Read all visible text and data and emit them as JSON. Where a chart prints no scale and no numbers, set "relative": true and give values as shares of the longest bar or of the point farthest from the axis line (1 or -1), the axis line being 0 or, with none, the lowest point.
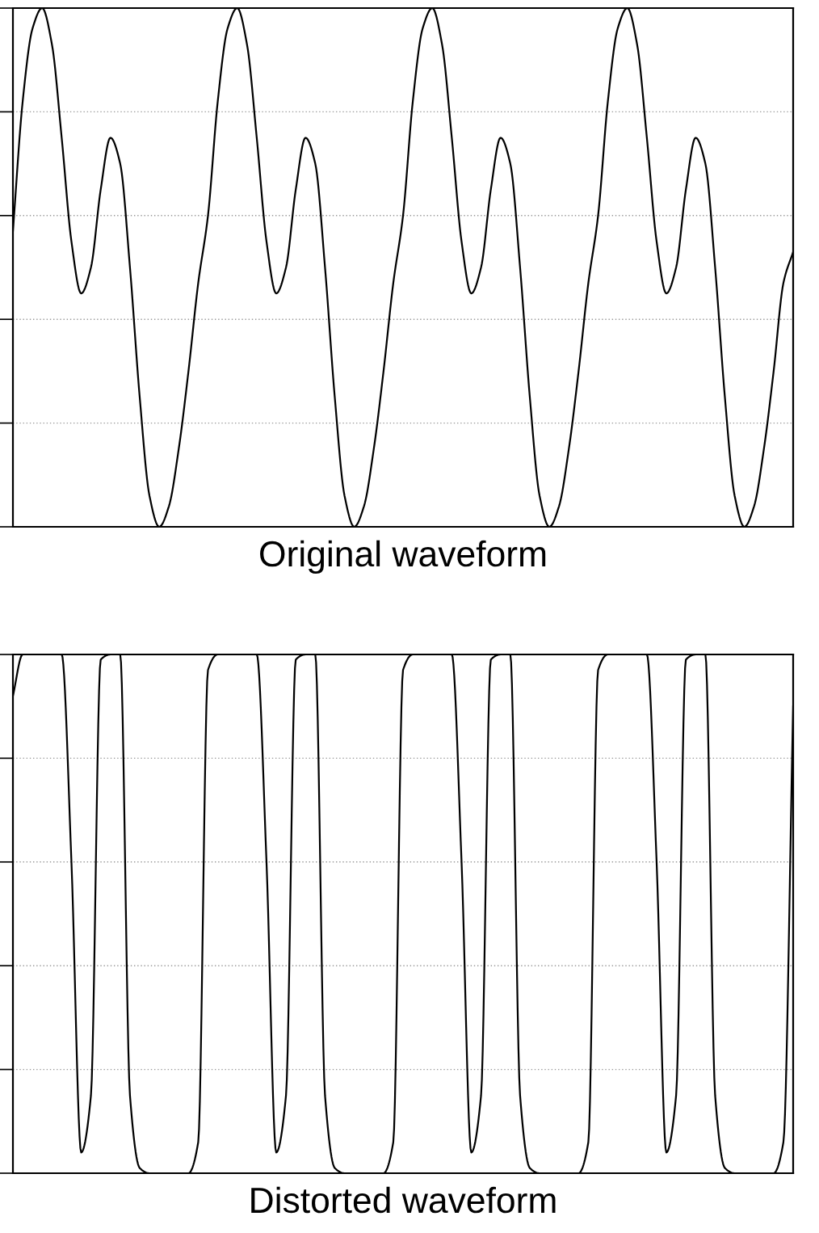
{
  "chart_data": [
    {
      "type": "line",
      "relative": true,
      "xlabel": "Original waveform",
      "color": "#000000",
      "grid": "y",
      "categories": [
        null,
        null,
        null,
        null,
        null,
        null,
        null,
        null,
        null,
        null,
        null,
        null,
        null,
        null,
        null,
        null,
        null,
        null,
        null,
        null,
        null,
        null,
        null,
        null,
        null,
        null,
        null,
        null,
        null,
        null,
        null,
        null,
        null,
        null,
        null,
        null,
        null,
        null,
        null,
        null,
        null,
        null,
        null,
        null,
        null,
        null,
        null,
        null,
        null,
        null,
        null,
        null,
        null,
        null,
        null,
        null,
        null,
        null,
        null,
        null,
        null,
        null,
        null,
        null,
        null,
        null,
        null,
        null,
        null,
        null,
        null,
        null,
        null,
        null,
        null,
        null,
        null,
        null,
        null,
        null,
        null
      ],
      "values": [
        0.57,
        0.82,
        0.96,
        1.0,
        0.93,
        0.75,
        0.55,
        0.45,
        0.5,
        0.65,
        0.75,
        0.7,
        0.5,
        0.25,
        0.06,
        0.0,
        0.04,
        0.15,
        0.3,
        0.47,
        0.6,
        0.82,
        0.96,
        1.0,
        0.93,
        0.75,
        0.55,
        0.45,
        0.5,
        0.65,
        0.75,
        0.7,
        0.5,
        0.25,
        0.06,
        0.0,
        0.04,
        0.15,
        0.3,
        0.47,
        0.6,
        0.82,
        0.96,
        1.0,
        0.93,
        0.75,
        0.55,
        0.45,
        0.5,
        0.65,
        0.75,
        0.7,
        0.5,
        0.25,
        0.06,
        0.0,
        0.04,
        0.15,
        0.3,
        0.47,
        0.6,
        0.82,
        0.96,
        1.0,
        0.93,
        0.75,
        0.55,
        0.45,
        0.5,
        0.65,
        0.75,
        0.7,
        0.5,
        0.25,
        0.06,
        0.0,
        0.04,
        0.15,
        0.3,
        0.47,
        0.53
      ]
    },
    {
      "type": "line",
      "relative": true,
      "xlabel": "Distorted waveform",
      "color": "#000000",
      "grid": "y",
      "categories": [
        null,
        null,
        null,
        null,
        null,
        null,
        null,
        null,
        null,
        null,
        null,
        null,
        null,
        null,
        null,
        null,
        null,
        null,
        null,
        null,
        null,
        null,
        null,
        null,
        null,
        null,
        null,
        null,
        null,
        null,
        null,
        null,
        null,
        null,
        null,
        null,
        null,
        null,
        null,
        null,
        null,
        null,
        null,
        null,
        null,
        null,
        null,
        null,
        null,
        null,
        null,
        null,
        null,
        null,
        null,
        null,
        null,
        null,
        null,
        null,
        null,
        null,
        null,
        null,
        null,
        null,
        null,
        null,
        null,
        null,
        null,
        null,
        null,
        null,
        null,
        null,
        null,
        null,
        null,
        null,
        null
      ],
      "values": [
        0.92,
        1.0,
        1.0,
        1.0,
        1.0,
        1.0,
        0.6,
        0.04,
        0.15,
        0.99,
        1.0,
        1.0,
        0.15,
        0.01,
        0.0,
        0.0,
        0.0,
        0.0,
        0.0,
        0.06,
        0.97,
        1.0,
        1.0,
        1.0,
        1.0,
        1.0,
        0.6,
        0.04,
        0.15,
        0.99,
        1.0,
        1.0,
        0.15,
        0.01,
        0.0,
        0.0,
        0.0,
        0.0,
        0.0,
        0.06,
        0.97,
        1.0,
        1.0,
        1.0,
        1.0,
        1.0,
        0.6,
        0.04,
        0.15,
        0.99,
        1.0,
        1.0,
        0.15,
        0.01,
        0.0,
        0.0,
        0.0,
        0.0,
        0.0,
        0.06,
        0.97,
        1.0,
        1.0,
        1.0,
        1.0,
        1.0,
        0.6,
        0.04,
        0.15,
        0.99,
        1.0,
        1.0,
        0.15,
        0.01,
        0.0,
        0.0,
        0.0,
        0.0,
        0.0,
        0.06,
        0.9
      ]
    }
  ]
}
